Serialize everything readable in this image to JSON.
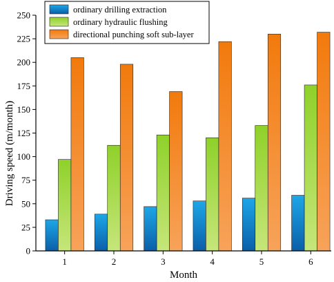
{
  "chart_data": {
    "type": "bar",
    "title": "",
    "xlabel": "Month",
    "ylabel": "Driving speed (m/month)",
    "categories": [
      "1",
      "2",
      "3",
      "4",
      "5",
      "6"
    ],
    "ylim": [
      0,
      250
    ],
    "yticks": [
      0,
      25,
      50,
      75,
      100,
      125,
      150,
      175,
      200,
      225,
      250
    ],
    "grid": false,
    "legend_position": "top-left",
    "series": [
      {
        "name": "ordinary drilling extraction",
        "color_top": "#1ea6e8",
        "color_bottom": "#0a5fa8",
        "values": [
          33,
          39,
          47,
          53,
          56,
          59
        ]
      },
      {
        "name": "ordinary hydraulic flushing",
        "color_top": "#8fd12a",
        "color_bottom": "#c6e67a",
        "values": [
          97,
          112,
          123,
          120,
          133,
          176
        ]
      },
      {
        "name": "directional punching soft sub-layer",
        "color_top": "#f27a0c",
        "color_bottom": "#f7a35a",
        "values": [
          205,
          198,
          169,
          222,
          230,
          232
        ]
      }
    ]
  }
}
